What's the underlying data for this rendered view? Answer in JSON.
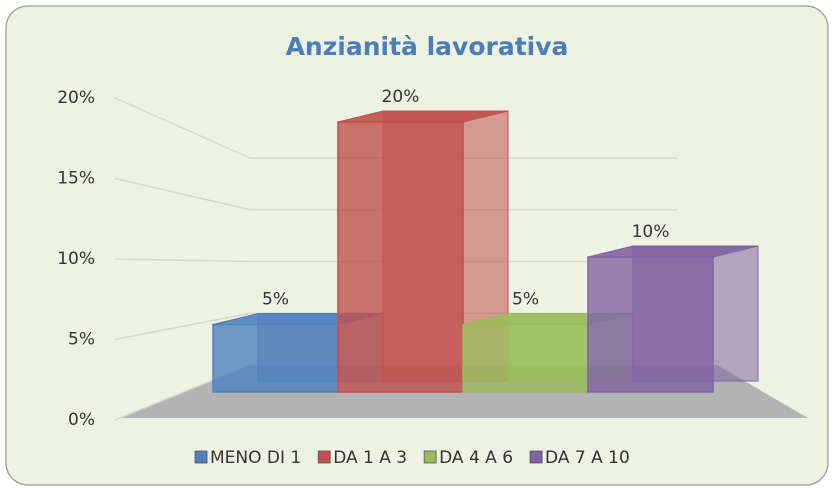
{
  "chart_data": {
    "type": "bar",
    "title": "Anzianità lavorativa",
    "series": [
      {
        "name": "MENO DI 1",
        "color": "#4f81bd",
        "values": [
          5
        ],
        "value_labels": [
          "5%"
        ]
      },
      {
        "name": "DA 1 A 3",
        "color": "#c0504d",
        "values": [
          20
        ],
        "value_labels": [
          "20%"
        ]
      },
      {
        "name": "DA 4 A 6",
        "color": "#9bbb59",
        "values": [
          5
        ],
        "value_labels": [
          "5%"
        ]
      },
      {
        "name": "DA 7 A 10",
        "color": "#8064a2",
        "values": [
          10
        ],
        "value_labels": [
          "10%"
        ]
      }
    ],
    "ylim": [
      0,
      20
    ],
    "yticks": [
      {
        "value": 0,
        "label": "0%"
      },
      {
        "value": 5,
        "label": "5%"
      },
      {
        "value": 10,
        "label": "10%"
      },
      {
        "value": 15,
        "label": "15%"
      },
      {
        "value": 20,
        "label": "20%"
      }
    ],
    "grid": true,
    "legend": "bottom"
  }
}
